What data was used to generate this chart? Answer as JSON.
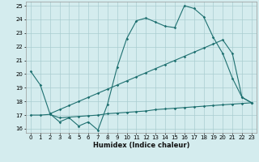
{
  "xlabel": "Humidex (Indice chaleur)",
  "bg_color": "#d4ecee",
  "grid_color": "#aacdd1",
  "line_color": "#1e7070",
  "xlim": [
    -0.5,
    23.5
  ],
  "ylim": [
    15.7,
    25.3
  ],
  "xticks": [
    0,
    1,
    2,
    3,
    4,
    5,
    6,
    7,
    8,
    9,
    10,
    11,
    12,
    13,
    14,
    15,
    16,
    17,
    18,
    19,
    20,
    21,
    22,
    23
  ],
  "yticks": [
    16,
    17,
    18,
    19,
    20,
    21,
    22,
    23,
    24,
    25
  ],
  "series1_x": [
    0,
    1,
    2,
    3,
    4,
    5,
    6,
    7,
    8,
    9,
    10,
    11,
    12,
    13,
    14,
    15,
    16,
    17,
    18,
    19,
    20,
    21,
    22,
    23
  ],
  "series1_y": [
    20.2,
    19.2,
    17.1,
    16.5,
    16.8,
    16.2,
    16.5,
    15.9,
    17.8,
    20.5,
    22.6,
    23.9,
    24.1,
    23.8,
    23.5,
    23.4,
    25.0,
    24.8,
    24.2,
    22.7,
    21.5,
    19.7,
    18.3,
    17.9
  ],
  "series2_x": [
    0,
    1,
    2,
    3,
    4,
    5,
    6,
    7,
    8,
    9,
    10,
    11,
    12,
    13,
    14,
    15,
    16,
    17,
    18,
    19,
    20,
    21,
    22,
    23
  ],
  "series2_y": [
    17.0,
    17.0,
    17.05,
    16.8,
    16.85,
    16.9,
    16.95,
    17.0,
    17.1,
    17.15,
    17.2,
    17.25,
    17.3,
    17.4,
    17.45,
    17.5,
    17.55,
    17.6,
    17.65,
    17.7,
    17.75,
    17.8,
    17.85,
    17.9
  ],
  "series3_x": [
    2,
    3,
    4,
    5,
    6,
    7,
    8,
    9,
    10,
    11,
    12,
    13,
    14,
    15,
    16,
    17,
    18,
    19,
    20,
    21,
    22,
    23
  ],
  "series3_y": [
    17.1,
    17.4,
    17.7,
    18.0,
    18.3,
    18.6,
    18.9,
    19.2,
    19.5,
    19.8,
    20.1,
    20.4,
    20.7,
    21.0,
    21.3,
    21.6,
    21.9,
    22.2,
    22.5,
    21.5,
    18.3,
    17.9
  ]
}
